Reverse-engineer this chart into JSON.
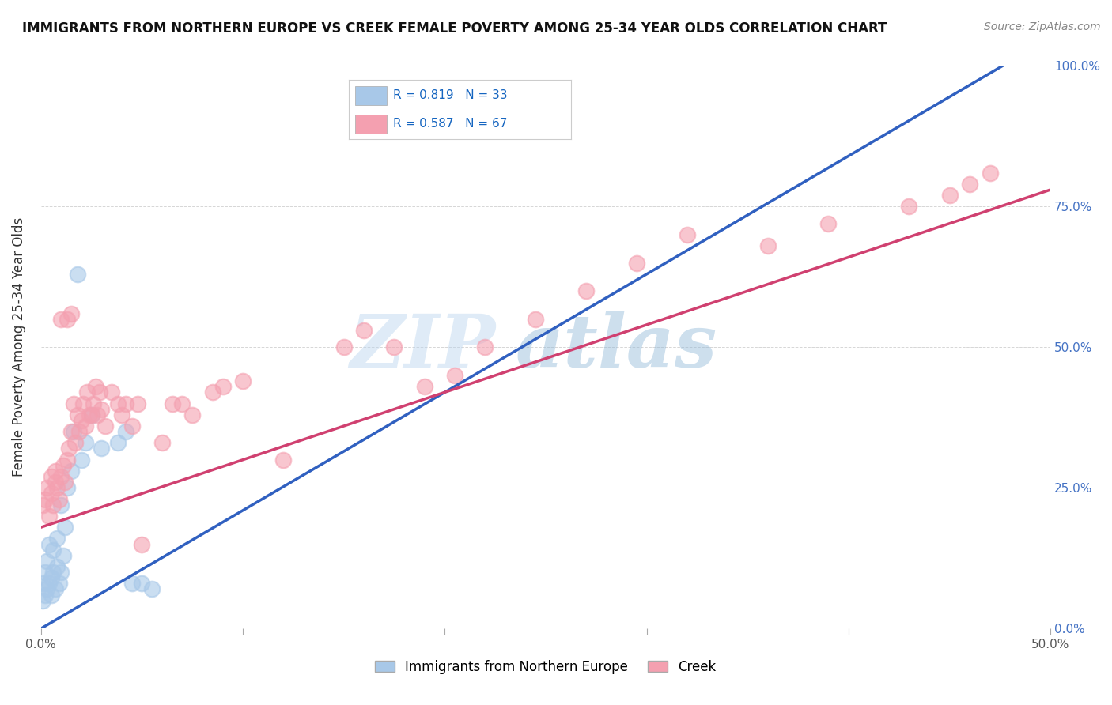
{
  "title": "IMMIGRANTS FROM NORTHERN EUROPE VS CREEK FEMALE POVERTY AMONG 25-34 YEAR OLDS CORRELATION CHART",
  "source": "Source: ZipAtlas.com",
  "ylabel": "Female Poverty Among 25-34 Year Olds",
  "blue_label": "Immigrants from Northern Europe",
  "pink_label": "Creek",
  "blue_R": 0.819,
  "blue_N": 33,
  "pink_R": 0.587,
  "pink_N": 67,
  "blue_color": "#a8c8e8",
  "pink_color": "#f4a0b0",
  "blue_line_color": "#3060c0",
  "pink_line_color": "#d04070",
  "watermark_zip": "ZIP",
  "watermark_atlas": "atlas",
  "blue_scatter_x": [
    0.001,
    0.001,
    0.002,
    0.002,
    0.003,
    0.003,
    0.004,
    0.004,
    0.005,
    0.005,
    0.006,
    0.006,
    0.007,
    0.008,
    0.008,
    0.009,
    0.01,
    0.01,
    0.011,
    0.012,
    0.013,
    0.015,
    0.016,
    0.018,
    0.02,
    0.022,
    0.025,
    0.03,
    0.038,
    0.042,
    0.045,
    0.05,
    0.055
  ],
  "blue_scatter_y": [
    0.05,
    0.08,
    0.06,
    0.1,
    0.07,
    0.12,
    0.08,
    0.15,
    0.06,
    0.09,
    0.1,
    0.14,
    0.07,
    0.11,
    0.16,
    0.08,
    0.1,
    0.22,
    0.13,
    0.18,
    0.25,
    0.28,
    0.35,
    0.63,
    0.3,
    0.33,
    0.38,
    0.32,
    0.33,
    0.35,
    0.08,
    0.08,
    0.07
  ],
  "pink_scatter_x": [
    0.001,
    0.002,
    0.003,
    0.004,
    0.005,
    0.005,
    0.006,
    0.007,
    0.007,
    0.008,
    0.009,
    0.01,
    0.01,
    0.011,
    0.012,
    0.013,
    0.013,
    0.014,
    0.015,
    0.015,
    0.016,
    0.017,
    0.018,
    0.019,
    0.02,
    0.021,
    0.022,
    0.023,
    0.024,
    0.025,
    0.026,
    0.027,
    0.028,
    0.029,
    0.03,
    0.032,
    0.035,
    0.038,
    0.04,
    0.042,
    0.045,
    0.048,
    0.05,
    0.06,
    0.065,
    0.07,
    0.075,
    0.085,
    0.09,
    0.1,
    0.12,
    0.15,
    0.16,
    0.175,
    0.19,
    0.205,
    0.22,
    0.245,
    0.27,
    0.295,
    0.32,
    0.36,
    0.39,
    0.43,
    0.45,
    0.46,
    0.47
  ],
  "pink_scatter_y": [
    0.22,
    0.23,
    0.25,
    0.2,
    0.24,
    0.27,
    0.22,
    0.26,
    0.28,
    0.25,
    0.23,
    0.27,
    0.55,
    0.29,
    0.26,
    0.3,
    0.55,
    0.32,
    0.35,
    0.56,
    0.4,
    0.33,
    0.38,
    0.35,
    0.37,
    0.4,
    0.36,
    0.42,
    0.38,
    0.38,
    0.4,
    0.43,
    0.38,
    0.42,
    0.39,
    0.36,
    0.42,
    0.4,
    0.38,
    0.4,
    0.36,
    0.4,
    0.15,
    0.33,
    0.4,
    0.4,
    0.38,
    0.42,
    0.43,
    0.44,
    0.3,
    0.5,
    0.53,
    0.5,
    0.43,
    0.45,
    0.5,
    0.55,
    0.6,
    0.65,
    0.7,
    0.68,
    0.72,
    0.75,
    0.77,
    0.79,
    0.81
  ],
  "xlim": [
    0.0,
    0.5
  ],
  "ylim": [
    0.0,
    1.0
  ],
  "yticks": [
    0.0,
    0.25,
    0.5,
    0.75,
    1.0
  ],
  "ytick_labels_right": [
    "0.0%",
    "25.0%",
    "50.0%",
    "75.0%",
    "100.0%"
  ],
  "xtick_positions": [
    0.0,
    0.1,
    0.2,
    0.3,
    0.4,
    0.5
  ],
  "blue_line_x": [
    0.0,
    0.5
  ],
  "pink_line_x": [
    0.0,
    0.5
  ],
  "blue_line_y": [
    0.0,
    1.05
  ],
  "pink_line_y": [
    0.18,
    0.78
  ]
}
